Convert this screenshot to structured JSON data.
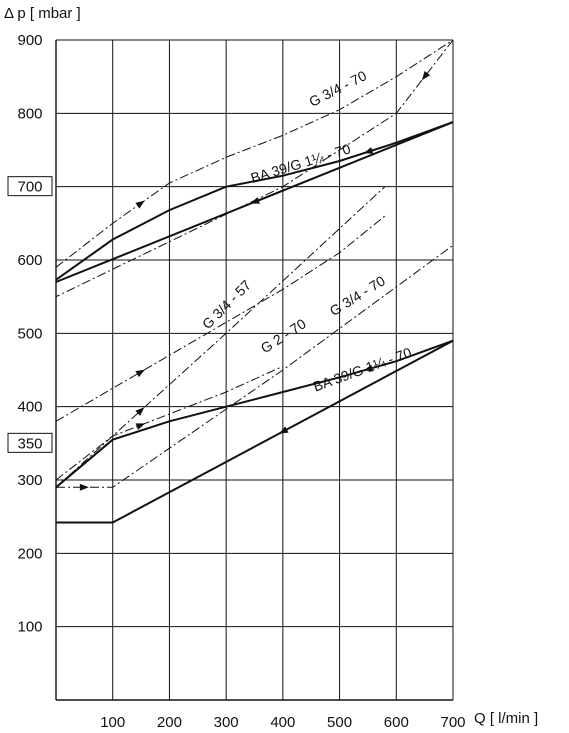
{
  "chart_data": {
    "type": "line",
    "title": "",
    "ylabel": "Δ p [ mbar ]",
    "xlabel": "Q [ l/min ]",
    "xlim": [
      0,
      700
    ],
    "ylim": [
      0,
      900
    ],
    "grid": true,
    "x_ticks": [
      "100",
      "200",
      "300",
      "400",
      "500",
      "600",
      "700"
    ],
    "y_ticks": [
      {
        "value": 100,
        "label": "100",
        "boxed": false
      },
      {
        "value": 200,
        "label": "200",
        "boxed": false
      },
      {
        "value": 300,
        "label": "300",
        "boxed": false
      },
      {
        "value": 350,
        "label": "350",
        "boxed": true
      },
      {
        "value": 400,
        "label": "400",
        "boxed": false
      },
      {
        "value": 500,
        "label": "500",
        "boxed": false
      },
      {
        "value": 600,
        "label": "600",
        "boxed": false
      },
      {
        "value": 700,
        "label": "700",
        "boxed": true
      },
      {
        "value": 800,
        "label": "800",
        "boxed": false
      },
      {
        "value": 900,
        "label": "900",
        "boxed": false
      }
    ],
    "series": [
      {
        "name": "BA 39/G 1¼ - 70 (upper)",
        "style": "solid",
        "x": [
          700,
          600,
          500,
          400,
          300,
          200,
          100,
          0
        ],
        "y": [
          788,
          760,
          735,
          715,
          700,
          668,
          628,
          573
        ],
        "return_x": [
          700,
          0
        ],
        "return_y": [
          788,
          570
        ]
      },
      {
        "name": "BA 39/G 1¼ - 70 (lower)",
        "style": "solid",
        "x": [
          700,
          600,
          500,
          400,
          300,
          200,
          100,
          0
        ],
        "y": [
          490,
          462,
          440,
          420,
          400,
          380,
          355,
          290
        ],
        "return_x": [
          700,
          100,
          0
        ],
        "return_y": [
          490,
          242,
          242
        ]
      },
      {
        "name": "G 3/4 - 70 (upper)",
        "style": "dash-dot",
        "x": [
          0,
          100,
          200,
          300,
          400,
          500,
          600,
          700
        ],
        "y": [
          590,
          650,
          705,
          740,
          770,
          805,
          850,
          900
        ],
        "return_x": [
          700,
          600,
          400,
          0
        ],
        "return_y": [
          900,
          800,
          700,
          550
        ]
      },
      {
        "name": "G 3/4 - 57",
        "style": "dash-dot",
        "x": [
          0,
          100,
          200,
          300,
          400,
          500,
          580
        ],
        "y": [
          380,
          425,
          470,
          515,
          560,
          610,
          660
        ],
        "return_x": [
          0,
          300,
          580
        ],
        "return_y": [
          290,
          500,
          700
        ]
      },
      {
        "name": "G 2 - 70",
        "style": "dash-dot",
        "x": [
          0,
          100,
          200,
          300,
          400
        ],
        "y": [
          300,
          360,
          390,
          420,
          455
        ],
        "return_x": [
          0,
          100,
          400,
          700
        ],
        "return_y": [
          290,
          290,
          450,
          620
        ]
      }
    ],
    "labels": [
      {
        "text": "G 3/4 - 70",
        "position": "upper"
      },
      {
        "text": "BA 39/G 1¼ - 70",
        "position": "upper"
      },
      {
        "text": "G 3/4 - 57",
        "position": "middle"
      },
      {
        "text": "G 2 - 70",
        "position": "middle"
      },
      {
        "text": "G 3/4 - 70",
        "position": "middle"
      },
      {
        "text": "BA 39/G 1¼ - 70",
        "position": "lower"
      }
    ]
  }
}
